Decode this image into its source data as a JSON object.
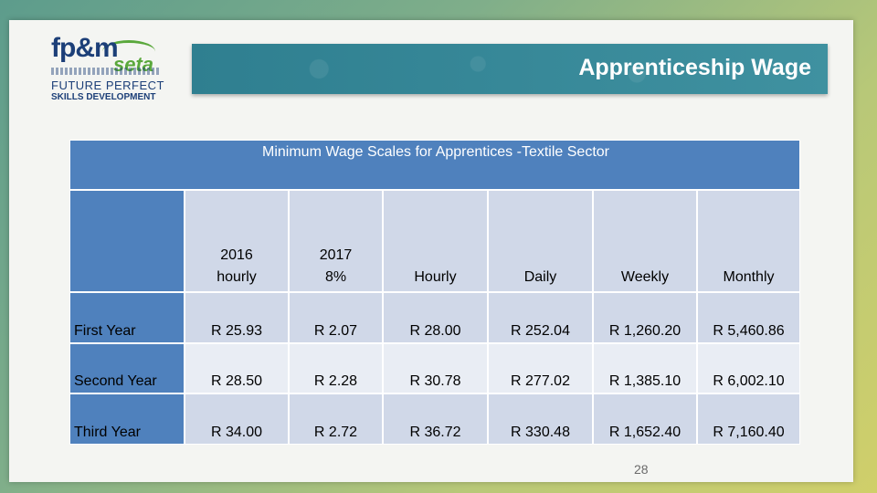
{
  "logo": {
    "brand": "fp&m",
    "seta": "seta",
    "tagline_line1": "FUTURE PERFECT",
    "tagline_line2": "SKILLS DEVELOPMENT"
  },
  "title": "Apprenticeship Wage",
  "table": {
    "caption": "Minimum Wage Scales for Apprentices  -Textile Sector",
    "columns": [
      "2016\nhourly",
      "2017\n8%",
      "Hourly",
      "Daily",
      "Weekly",
      "Monthly"
    ],
    "rows": [
      {
        "label": "First Year",
        "values": [
          "R 25.93",
          "R 2.07",
          "R 28.00",
          "R 252.04",
          "R 1,260.20",
          "R 5,460.86"
        ]
      },
      {
        "label": "Second Year",
        "values": [
          "R 28.50",
          "R 2.28",
          "R 30.78",
          "R 277.02",
          "R 1,385.10",
          "R 6,002.10"
        ]
      },
      {
        "label": "Third Year",
        "values": [
          "R 34.00",
          "R 2.72",
          "R 36.72",
          "R 330.48",
          "R 1,652.40",
          "R 7,160.40"
        ]
      }
    ]
  },
  "page_number": "28",
  "colors": {
    "title_bar": "#3b8a9a",
    "table_header": "#4f81bd",
    "cell_light": "#d0d8e8",
    "cell_lighter": "#e9edf4"
  }
}
